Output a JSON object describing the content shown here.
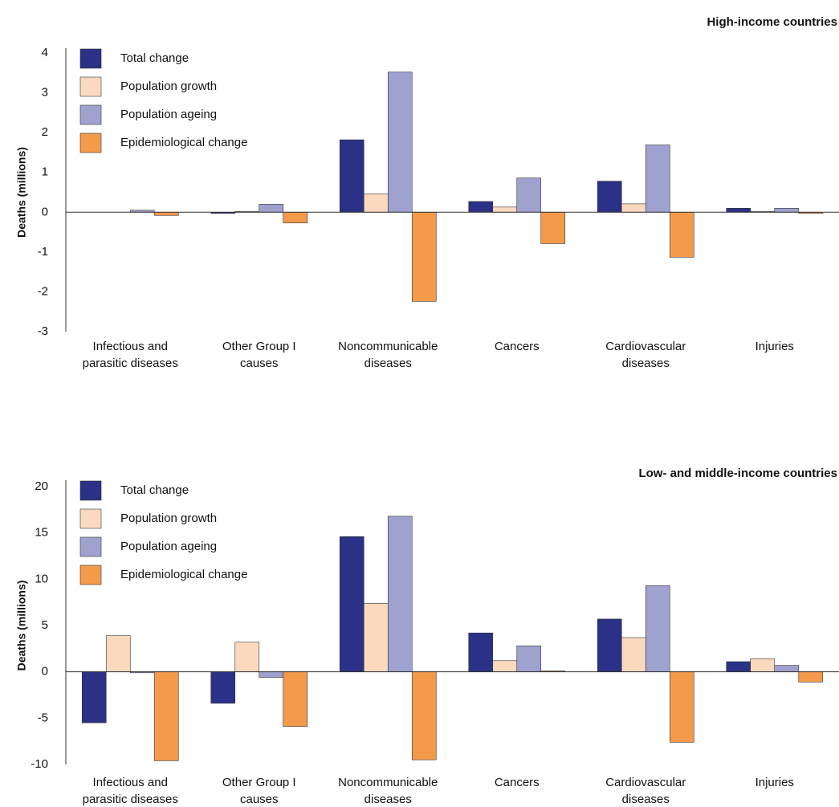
{
  "chart_data": [
    {
      "type": "bar",
      "title": "High-income countries",
      "y_label": "Deaths (millions)",
      "categories": [
        [
          "Infectious and",
          "parasitic diseases"
        ],
        [
          "Other Group I",
          "causes"
        ],
        [
          "Noncommunicable",
          "diseases"
        ],
        [
          "Cancers"
        ],
        [
          "Cardiovascular",
          "diseases"
        ],
        [
          "Injuries"
        ]
      ],
      "series": [
        {
          "name": "Total change",
          "color": "#2b3186",
          "values": [
            0,
            -0.03,
            1.82,
            0.27,
            0.78,
            0.1
          ]
        },
        {
          "name": "Population growth",
          "color": "#fbd9bf",
          "values": [
            0,
            0.02,
            0.46,
            0.13,
            0.21,
            0.02
          ]
        },
        {
          "name": "Population ageing",
          "color": "#9fa2cf",
          "values": [
            0.05,
            0.2,
            3.52,
            0.86,
            1.69,
            0.1
          ]
        },
        {
          "name": "Epidemiological change",
          "color": "#f39a4b",
          "values": [
            -0.08,
            -0.27,
            -2.24,
            -0.79,
            -1.13,
            -0.03
          ]
        }
      ],
      "ylim": [
        -3,
        4
      ],
      "yticks": [
        -3,
        -2,
        -1,
        0,
        1,
        2,
        3,
        4
      ]
    },
    {
      "type": "bar",
      "title": "Low- and middle-income countries",
      "y_label": "Deaths (millions)",
      "categories": [
        [
          "Infectious and",
          "parasitic diseases"
        ],
        [
          "Other Group I",
          "causes"
        ],
        [
          "Noncommunicable",
          "diseases"
        ],
        [
          "Cancers"
        ],
        [
          "Cardiovascular",
          "diseases"
        ],
        [
          "Injuries"
        ]
      ],
      "series": [
        {
          "name": "Total change",
          "color": "#2b3186",
          "values": [
            -5.5,
            -3.4,
            14.6,
            4.2,
            5.7,
            1.1
          ]
        },
        {
          "name": "Population growth",
          "color": "#fbd9bf",
          "values": [
            3.9,
            3.2,
            7.4,
            1.2,
            3.7,
            1.4
          ]
        },
        {
          "name": "Population ageing",
          "color": "#9fa2cf",
          "values": [
            -0.1,
            -0.6,
            16.8,
            2.8,
            9.3,
            0.7
          ]
        },
        {
          "name": "Epidemiological change",
          "color": "#f39a4b",
          "values": [
            -9.6,
            -5.9,
            -9.5,
            0.1,
            -7.6,
            -1.1
          ]
        }
      ],
      "ylim": [
        -10,
        20
      ],
      "yticks": [
        -10,
        -5,
        0,
        5,
        10,
        15,
        20
      ]
    }
  ]
}
